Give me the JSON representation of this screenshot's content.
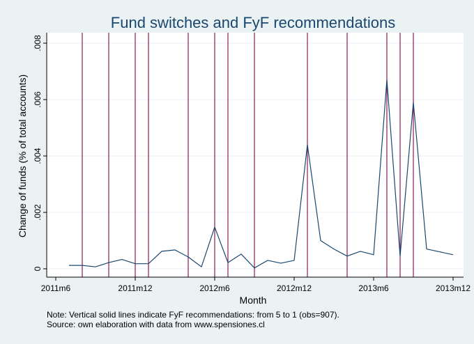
{
  "chart_data": {
    "type": "line",
    "title": "Fund switches and FyF recommendations",
    "xlabel": "Month",
    "ylabel": "Change of funds (% of total accounts)",
    "x_ticks": [
      "2011m6",
      "2011m12",
      "2012m6",
      "2012m12",
      "2013m6",
      "2013m12"
    ],
    "y_ticks": [
      "0",
      ".002",
      ".004",
      ".006",
      ".008"
    ],
    "ylim": [
      0,
      0.008
    ],
    "xlim": [
      "2011m6",
      "2013m12"
    ],
    "grid": true,
    "series": [
      {
        "x": [
          "2011m7",
          "2011m8",
          "2011m9",
          "2011m10",
          "2011m11",
          "2011m12",
          "2012m1",
          "2012m2",
          "2012m3",
          "2012m4",
          "2012m5",
          "2012m6",
          "2012m7",
          "2012m8",
          "2012m9",
          "2012m10",
          "2012m11",
          "2012m12",
          "2013m1",
          "2013m2",
          "2013m3",
          "2013m4",
          "2013m5",
          "2013m6",
          "2013m7",
          "2013m8",
          "2013m9",
          "2013m10",
          "2013m11",
          "2013m12"
        ],
        "values": [
          0.00012,
          0.00012,
          7e-05,
          0.00022,
          0.00033,
          0.00018,
          0.00018,
          0.00062,
          0.00067,
          0.00042,
          7e-05,
          0.00148,
          0.00022,
          0.00052,
          3e-05,
          0.0003,
          0.0002,
          0.0003,
          0.0044,
          0.001,
          0.0007,
          0.00045,
          0.00062,
          0.0005,
          0.0067,
          0.00045,
          0.0059,
          0.0007,
          0.0006,
          0.0005
        ]
      }
    ],
    "recommendations": [
      "2011m8",
      "2011m10",
      "2011m12",
      "2012m1",
      "2012m4",
      "2012m6",
      "2012m7",
      "2012m9",
      "2013m1",
      "2013m4",
      "2013m7",
      "2013m8",
      "2013m9"
    ],
    "line_color": "#1a476f",
    "recommendation_color": "#8b1b55",
    "notes": [
      "Note: Vertical solid lines indicate FyF recommendations: from 5 to 1 (obs=907).",
      "Source: own elaboration with data from www.spensiones.cl"
    ]
  }
}
